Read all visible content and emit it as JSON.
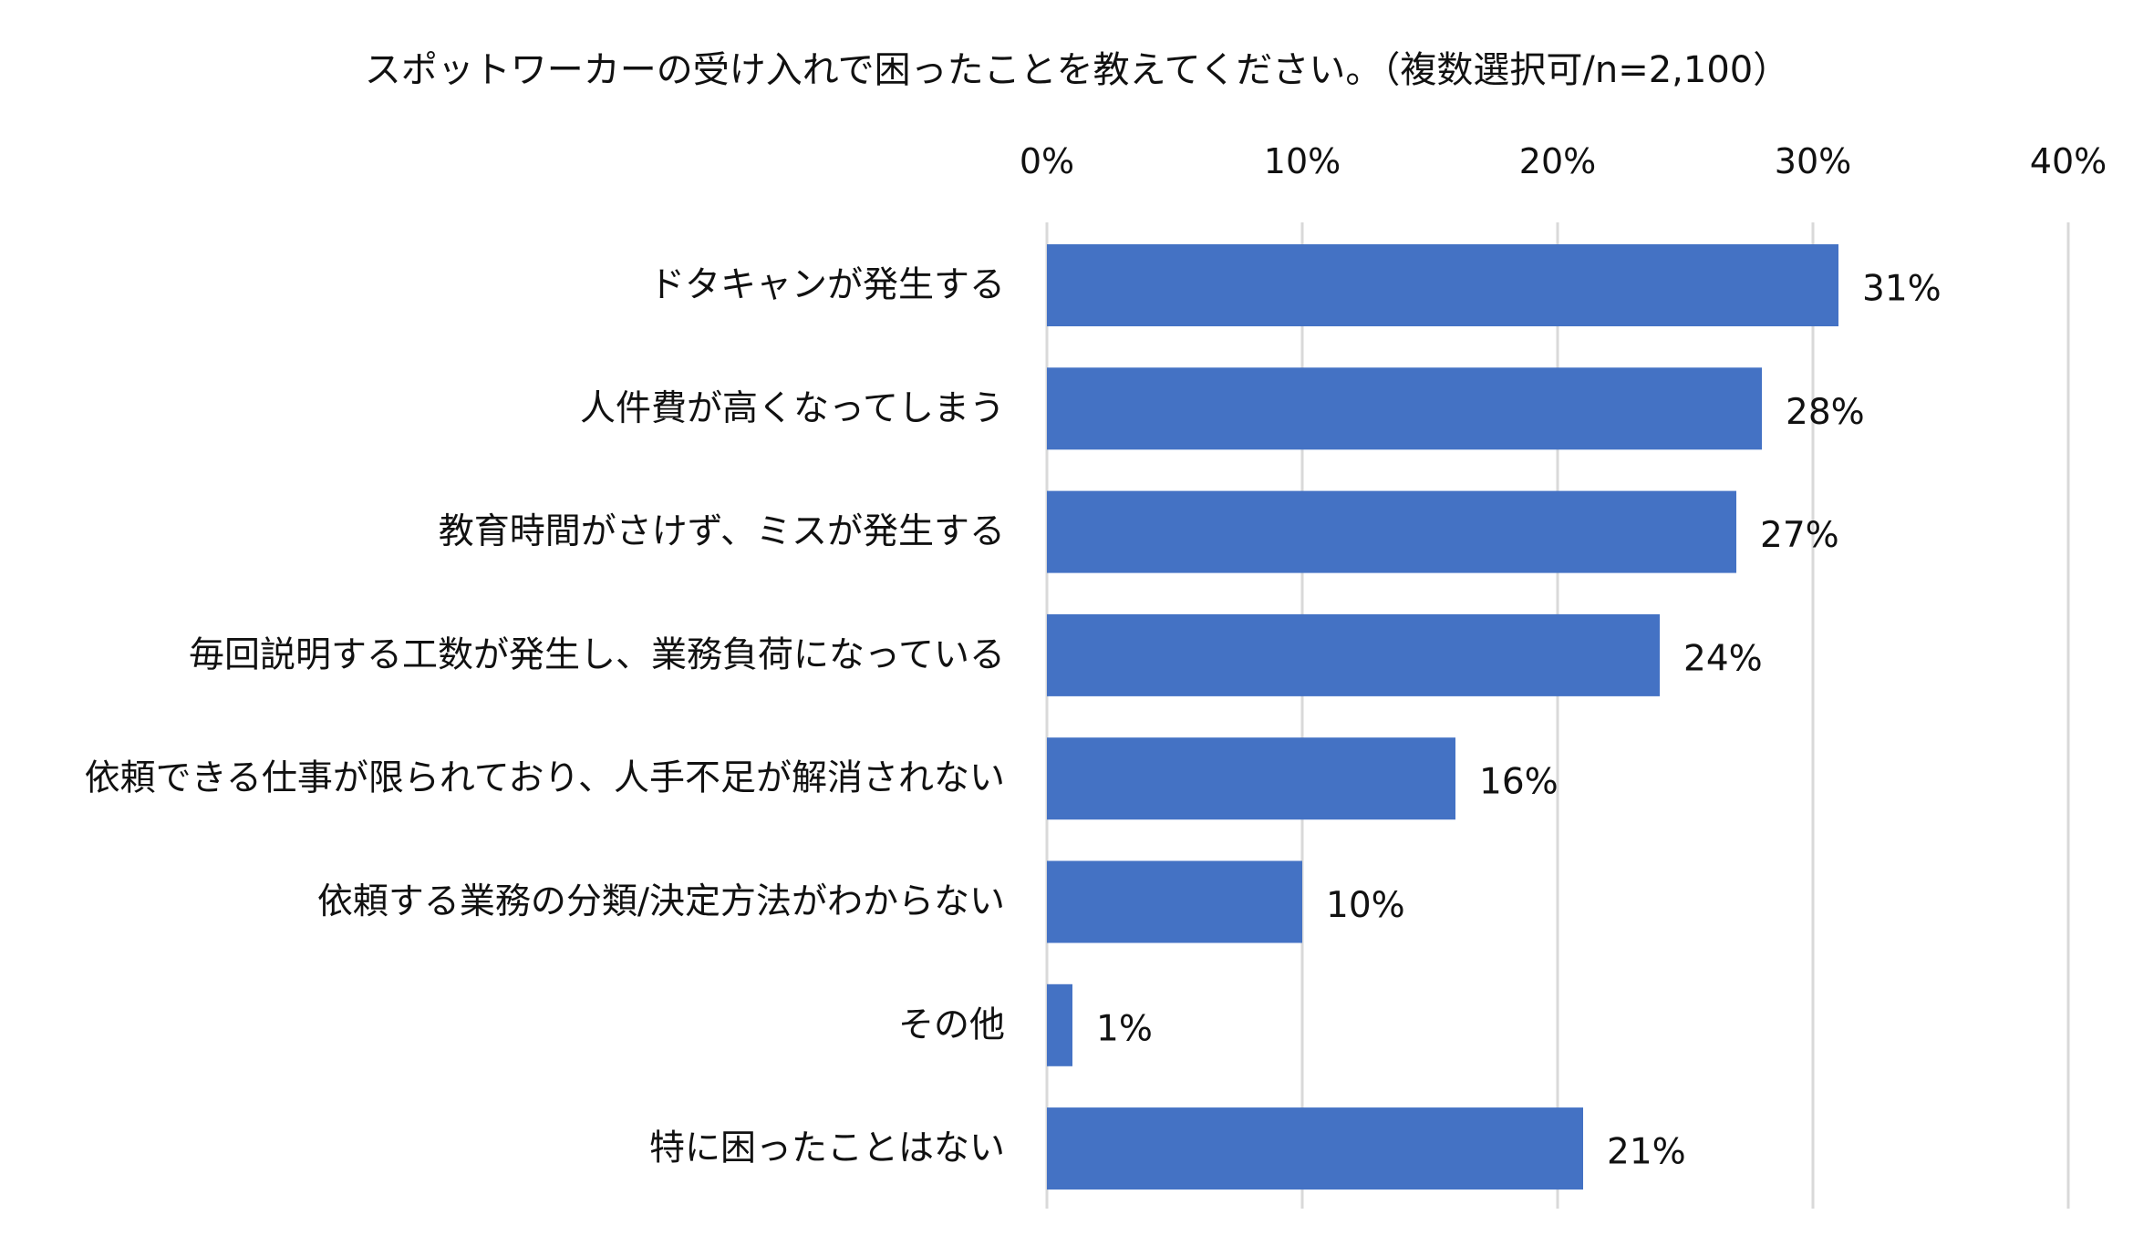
{
  "chart_data": {
    "type": "bar",
    "orientation": "horizontal",
    "title": "スポットワーカーの受け入れで困ったことを教えてください。（複数選択可/n=2,100）",
    "categories": [
      "ドタキャンが発生する",
      "人件費が高くなってしまう",
      "教育時間がさけず、ミスが発生する",
      "毎回説明する工数が発生し、業務負荷になっている",
      "依頼できる仕事が限られており、人手不足が解消されない",
      "依頼する業務の分類/決定方法がわからない",
      "その他",
      "特に困ったことはない"
    ],
    "values": [
      31,
      28,
      27,
      24,
      16,
      10,
      1,
      21
    ],
    "data_labels": [
      "31%",
      "28%",
      "27%",
      "24%",
      "16%",
      "10%",
      "1%",
      "21%"
    ],
    "xlim": [
      0,
      40
    ],
    "x_ticks": [
      0,
      10,
      20,
      30,
      40
    ],
    "x_tick_labels": [
      "0%",
      "10%",
      "20%",
      "30%",
      "40%"
    ],
    "x_axis_position": "top",
    "grid": true,
    "legend": "none",
    "bar_color": "#4472C4",
    "grid_color": "#D9D9D9"
  }
}
